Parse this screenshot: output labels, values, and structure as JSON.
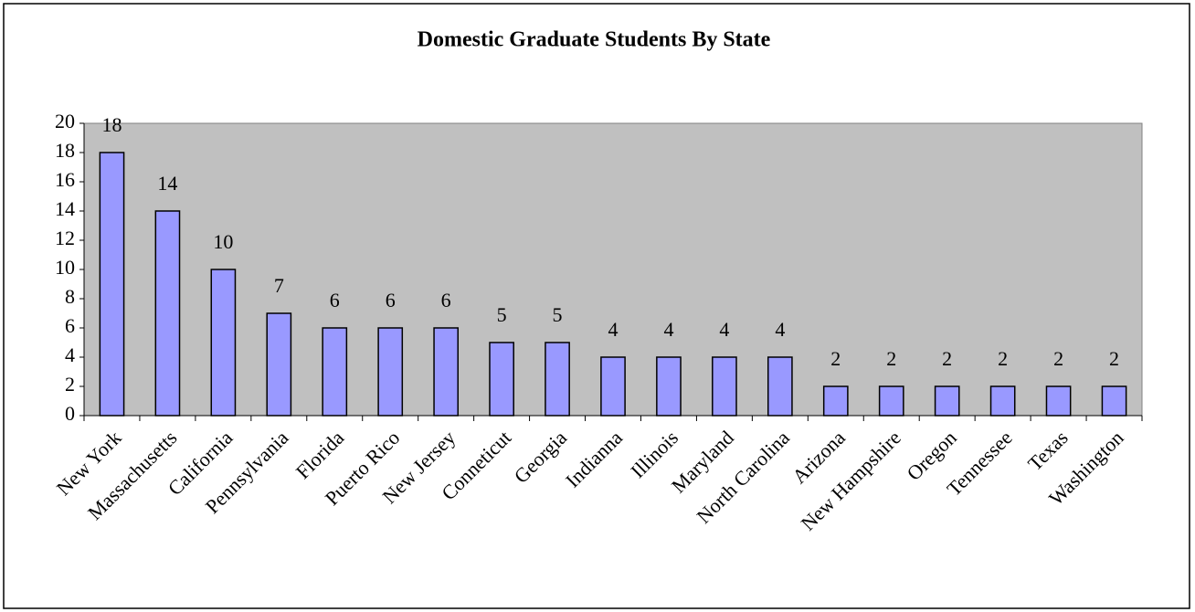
{
  "chart_data": {
    "type": "bar",
    "title": "Domestic Graduate Students By State",
    "categories": [
      "New York",
      "Massachusetts",
      "California",
      "Pennsylvania",
      "Florida",
      "Puerto Rico",
      "New Jersey",
      "Conneticut",
      "Georgia",
      "Indianna",
      "Illinois",
      "Maryland",
      "North Carolina",
      "Arizona",
      "New Hampshire",
      "Oregon",
      "Tennessee",
      "Texas",
      "Washington"
    ],
    "values": [
      18,
      14,
      10,
      7,
      6,
      6,
      6,
      5,
      5,
      4,
      4,
      4,
      4,
      2,
      2,
      2,
      2,
      2,
      2
    ],
    "color": "#9999ff",
    "plot_background": "#c0c0c0",
    "ylim": [
      0,
      20
    ],
    "yticks": [
      0,
      2,
      4,
      6,
      8,
      10,
      12,
      14,
      16,
      18,
      20
    ],
    "grid": false
  }
}
